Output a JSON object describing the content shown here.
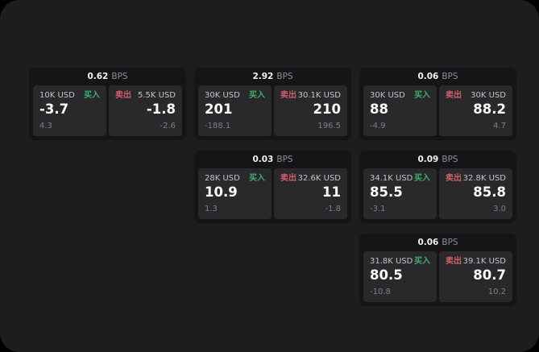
{
  "page": {
    "background": "#000000",
    "panel_bg": "#1d1d1f",
    "card_bg": "#151517",
    "tile_bg": "#29292b",
    "buy_color": "#3fae6e",
    "sell_color": "#d25f6b",
    "bps_suffix": "BPS",
    "buy_label": "买入",
    "sell_label": "卖出"
  },
  "layout": {
    "col_start": 36,
    "col_step": 205,
    "row_start": 84,
    "row_step": 103
  },
  "cards": [
    {
      "col": 0,
      "row": 0,
      "bps": "0.62",
      "buy": {
        "size": "10K USD",
        "value": "-3.7",
        "sub": "4.3"
      },
      "sell": {
        "size": "5.5K USD",
        "value": "-1.8",
        "sub": "-2.6"
      }
    },
    {
      "col": 1,
      "row": 0,
      "bps": "2.92",
      "buy": {
        "size": "30K USD",
        "value": "201",
        "sub": "-188.1"
      },
      "sell": {
        "size": "30.1K USD",
        "value": "210",
        "sub": "196.5"
      }
    },
    {
      "col": 2,
      "row": 0,
      "bps": "0.06",
      "buy": {
        "size": "30K USD",
        "value": "88",
        "sub": "-4.9"
      },
      "sell": {
        "size": "30K USD",
        "value": "88.2",
        "sub": "4.7"
      }
    },
    {
      "col": 1,
      "row": 1,
      "bps": "0.03",
      "buy": {
        "size": "28K USD",
        "value": "10.9",
        "sub": "1.3"
      },
      "sell": {
        "size": "32.6K USD",
        "value": "11",
        "sub": "-1.8"
      }
    },
    {
      "col": 2,
      "row": 1,
      "bps": "0.09",
      "buy": {
        "size": "34.1K USD",
        "value": "85.5",
        "sub": "-3.1"
      },
      "sell": {
        "size": "32.8K USD",
        "value": "85.8",
        "sub": "3.0"
      }
    },
    {
      "col": 2,
      "row": 2,
      "bps": "0.06",
      "buy": {
        "size": "31.8K USD",
        "value": "80.5",
        "sub": "-10.8"
      },
      "sell": {
        "size": "39.1K USD",
        "value": "80.7",
        "sub": "10.2"
      }
    }
  ]
}
